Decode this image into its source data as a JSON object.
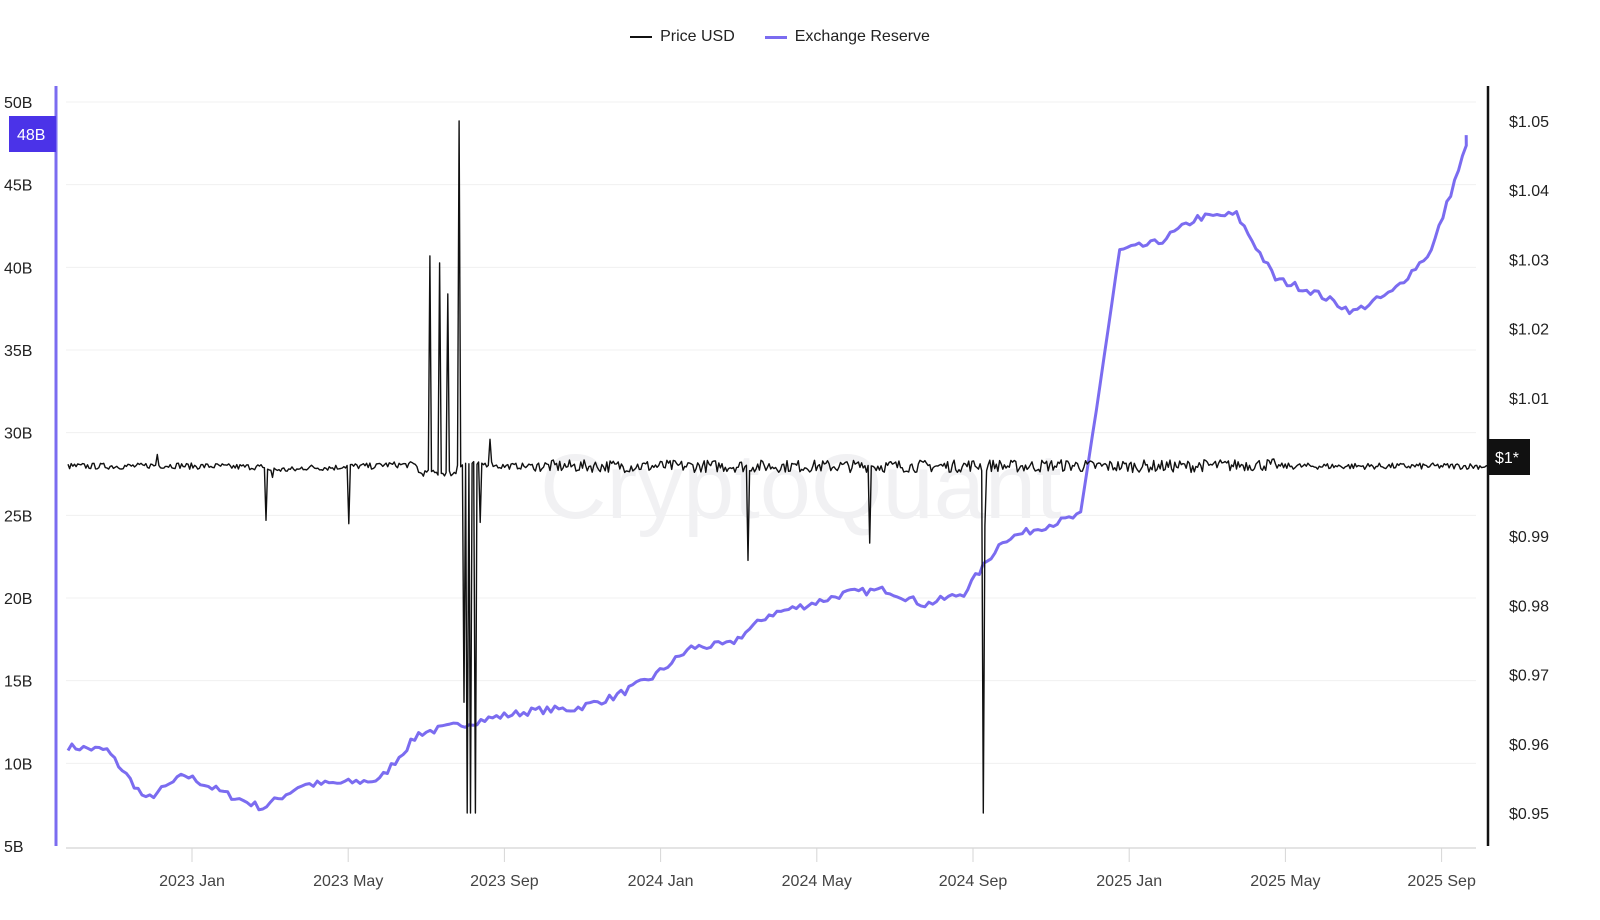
{
  "legend": {
    "items": [
      {
        "label": "Price USD",
        "color": "#111111"
      },
      {
        "label": "Exchange Reserve",
        "color": "#7B6CF0"
      }
    ]
  },
  "watermark": "CryptoQuant",
  "left_axis": {
    "ticks": [
      "50B",
      "45B",
      "40B",
      "35B",
      "30B",
      "25B",
      "20B",
      "15B",
      "10B",
      "5B"
    ],
    "current_badge": "48B",
    "badge_color": "#4B33E8",
    "axis_color": "#7B6CF0"
  },
  "right_axis": {
    "ticks": [
      "$1.05",
      "$1.04",
      "$1.03",
      "$1.02",
      "$1.01",
      "$0.99",
      "$0.98",
      "$0.97",
      "$0.96",
      "$0.95"
    ],
    "current_badge": "$1*",
    "badge_color": "#111111"
  },
  "x_axis": {
    "ticks": [
      "2023 Jan",
      "2023 May",
      "2023 Sep",
      "2024 Jan",
      "2024 May",
      "2024 Sep",
      "2025 Jan",
      "2025 May",
      "2025 Sep"
    ]
  },
  "chart_data": {
    "type": "line",
    "title": "",
    "xlabel": "",
    "ylabel": "Exchange Reserve",
    "y2label": "Price USD",
    "ylim": [
      5,
      50
    ],
    "y2lim": [
      0.945,
      1.055
    ],
    "grid": true,
    "legend_position": "top-center",
    "categories": [
      "2022 Sep",
      "2022 Oct",
      "2022 Nov",
      "2022 Dec",
      "2023 Jan",
      "2023 Feb",
      "2023 Mar",
      "2023 Apr",
      "2023 May",
      "2023 Jun",
      "2023 Jul",
      "2023 Aug",
      "2023 Sep",
      "2023 Oct",
      "2023 Nov",
      "2023 Dec",
      "2024 Jan",
      "2024 Feb",
      "2024 Mar",
      "2024 Apr",
      "2024 May",
      "2024 Jun",
      "2024 Jul",
      "2024 Aug",
      "2024 Sep",
      "2024 Oct",
      "2024 Nov",
      "2024 Dec",
      "2025 Jan",
      "2025 Feb",
      "2025 Mar",
      "2025 Apr",
      "2025 May",
      "2025 Jun",
      "2025 Jul",
      "2025 Aug",
      "2025 Sep"
    ],
    "series": [
      {
        "name": "Exchange Reserve",
        "unit": "B",
        "axis": "left",
        "values": [
          11.0,
          10.8,
          7.8,
          9.3,
          8.2,
          7.3,
          8.7,
          8.8,
          9.0,
          11.8,
          12.3,
          12.8,
          13.2,
          13.3,
          14.0,
          15.2,
          17.0,
          17.2,
          19.0,
          19.6,
          20.3,
          20.5,
          19.6,
          20.3,
          23.5,
          24.3,
          25.0,
          41.0,
          41.5,
          43.0,
          43.2,
          39.3,
          38.5,
          37.3,
          38.5,
          41.0,
          48.0
        ]
      },
      {
        "name": "Price USD",
        "unit": "$",
        "axis": "right",
        "values": [
          1.0,
          1.0,
          1.0001,
          1.0,
          0.9999,
          0.9995,
          0.9998,
          1.0,
          1.0002,
          0.999,
          1.0003,
          1.0,
          1.0,
          1.0,
          1.0,
          1.0,
          1.0,
          1.0,
          1.0,
          1.0,
          1.0,
          1.0,
          1.0,
          1.0001,
          1.0,
          1.0001,
          1.0,
          1.0,
          1.0,
          1.0001,
          1.0002,
          1.0,
          1.0,
          1.0,
          1.0,
          1.0,
          1.0
        ],
        "notable_spikes": [
          {
            "date": "2022 Nov",
            "value": 1.002
          },
          {
            "date": "2023 Feb",
            "value": 0.992
          },
          {
            "date": "2023 Apr",
            "value": 0.991
          },
          {
            "date": "2023 Jun",
            "value": 1.031
          },
          {
            "date": "2023 Jul",
            "value": 1.05
          },
          {
            "date": "2023 Jul",
            "value": 0.95
          },
          {
            "date": "2024 Feb",
            "value": 0.987
          },
          {
            "date": "2024 May",
            "value": 0.989
          },
          {
            "date": "2024 Aug",
            "value": 0.95
          }
        ]
      }
    ]
  }
}
